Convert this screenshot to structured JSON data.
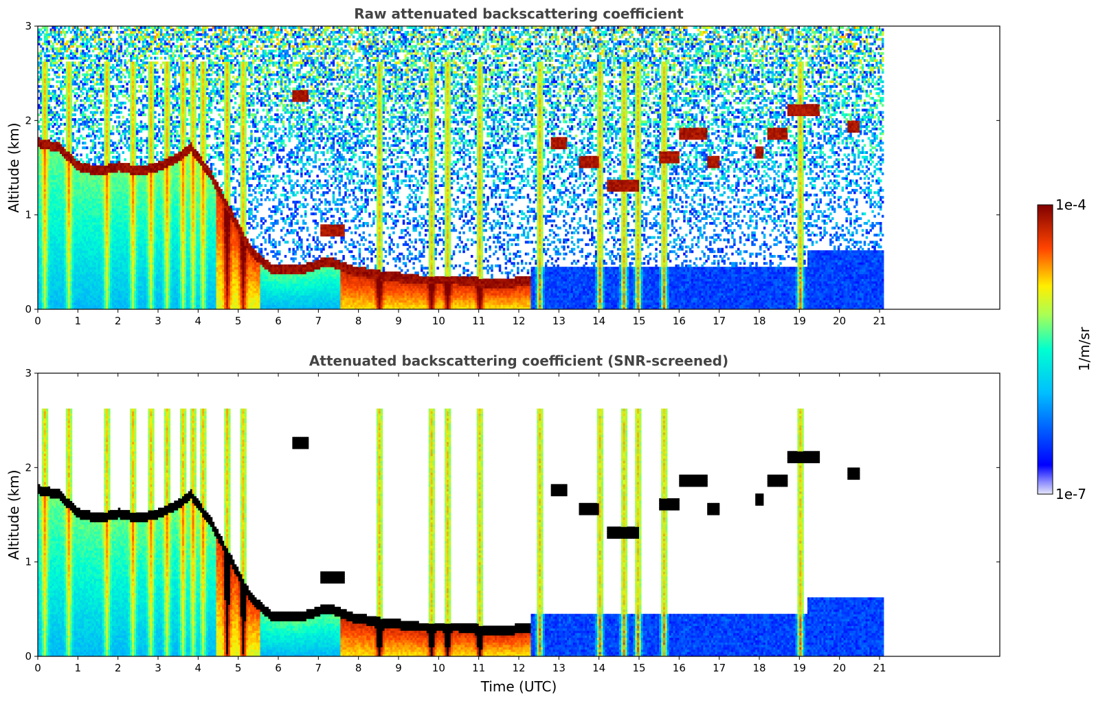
{
  "chart_data": [
    {
      "type": "heatmap",
      "id": "raw",
      "title": "Raw attenuated backscattering coefficient",
      "ylabel": "Altitude (km)",
      "xlabel": "",
      "xlim": [
        0,
        24
      ],
      "ylim": [
        0,
        3
      ],
      "x_ticks": [
        0,
        1,
        2,
        3,
        4,
        5,
        6,
        7,
        8,
        9,
        10,
        11,
        12,
        13,
        14,
        15,
        16,
        17,
        18,
        19,
        20,
        21
      ],
      "y_ticks": [
        0,
        1,
        2,
        3
      ],
      "data_end_time": 21.1,
      "screened": false,
      "boundary_layer_top": [
        {
          "t": 0,
          "h": 1.75
        },
        {
          "t": 0.5,
          "h": 1.7
        },
        {
          "t": 1,
          "h": 1.5
        },
        {
          "t": 1.5,
          "h": 1.45
        },
        {
          "t": 2,
          "h": 1.5
        },
        {
          "t": 2.5,
          "h": 1.45
        },
        {
          "t": 3,
          "h": 1.5
        },
        {
          "t": 3.5,
          "h": 1.6
        },
        {
          "t": 3.8,
          "h": 1.7
        },
        {
          "t": 4.3,
          "h": 1.4
        },
        {
          "t": 4.8,
          "h": 1.0
        },
        {
          "t": 5.3,
          "h": 0.6
        },
        {
          "t": 5.8,
          "h": 0.42
        },
        {
          "t": 6.5,
          "h": 0.4
        },
        {
          "t": 7.2,
          "h": 0.5
        },
        {
          "t": 7.8,
          "h": 0.4
        },
        {
          "t": 8.5,
          "h": 0.35
        },
        {
          "t": 9.5,
          "h": 0.3
        },
        {
          "t": 10.5,
          "h": 0.3
        },
        {
          "t": 11.5,
          "h": 0.25
        },
        {
          "t": 12.3,
          "h": 0.3
        }
      ],
      "elevated_layers": [
        {
          "t0": 6.3,
          "t1": 6.7,
          "h": 2.25
        },
        {
          "t0": 7.0,
          "t1": 7.6,
          "h": 0.82
        },
        {
          "t0": 12.8,
          "t1": 13.2,
          "h": 1.75
        },
        {
          "t0": 13.5,
          "t1": 14.0,
          "h": 1.55
        },
        {
          "t0": 14.2,
          "t1": 15.0,
          "h": 1.3
        },
        {
          "t0": 15.5,
          "t1": 16.0,
          "h": 1.6
        },
        {
          "t0": 16.0,
          "t1": 16.7,
          "h": 1.85
        },
        {
          "t0": 16.7,
          "t1": 17.0,
          "h": 1.55
        },
        {
          "t0": 17.9,
          "t1": 18.1,
          "h": 1.65
        },
        {
          "t0": 18.2,
          "t1": 18.7,
          "h": 1.85
        },
        {
          "t0": 18.7,
          "t1": 19.5,
          "h": 2.1
        },
        {
          "t0": 20.2,
          "t1": 20.5,
          "h": 1.92
        }
      ],
      "vertical_plumes": [
        0.15,
        0.75,
        1.7,
        2.35,
        2.8,
        3.2,
        3.6,
        3.85,
        4.1,
        4.7,
        5.1,
        8.5,
        9.8,
        10.2,
        11.0,
        12.5,
        14.0,
        14.6,
        14.95,
        15.6,
        19.0
      ]
    },
    {
      "type": "heatmap",
      "id": "snr",
      "title": "Attenuated backscattering coefficient (SNR-screened)",
      "ylabel": "Altitude (km)",
      "xlabel": "Time (UTC)",
      "xlim": [
        0,
        24
      ],
      "ylim": [
        0,
        3
      ],
      "x_ticks": [
        0,
        1,
        2,
        3,
        4,
        5,
        6,
        7,
        8,
        9,
        10,
        11,
        12,
        13,
        14,
        15,
        16,
        17,
        18,
        19,
        20,
        21
      ],
      "y_ticks": [
        0,
        1,
        2,
        3
      ],
      "data_end_time": 21.1,
      "screened": true
    }
  ],
  "colorbar": {
    "label": "1/m/sr",
    "min_label": "1e-7",
    "max_label": "1e-4",
    "colormap": "jet",
    "scale": "log",
    "range": [
      1e-07,
      0.0001
    ]
  }
}
